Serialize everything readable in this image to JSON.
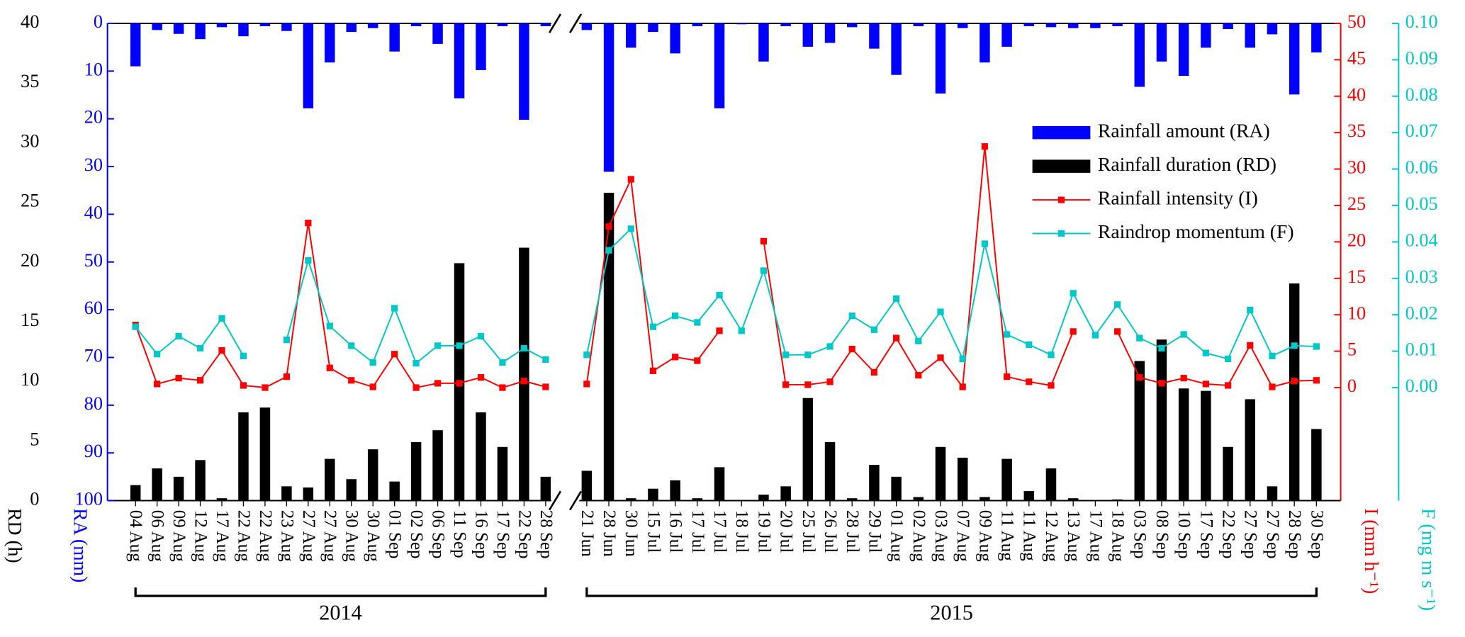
{
  "chart_data": {
    "type": "combo",
    "axis_break": true,
    "series": [
      {
        "name": "Rainfall amount (RA)",
        "color": "#0000ff",
        "mark": "bar",
        "axis": "ra"
      },
      {
        "name": "Rainfall duration (RD)",
        "color": "#000000",
        "mark": "bar",
        "axis": "rd"
      },
      {
        "name": "Rainfall intensity (I)",
        "color": "#ff0000",
        "mark": "line",
        "axis": "i"
      },
      {
        "name": "Raindrop momentum (F)",
        "color": "#00c8c8",
        "mark": "line",
        "axis": "f"
      }
    ],
    "axes": {
      "rd": {
        "label": "RD (h)",
        "color": "#000000",
        "lim": [
          0,
          40
        ],
        "ticks": [
          0,
          5,
          10,
          15,
          20,
          25,
          30,
          35,
          40
        ]
      },
      "ra": {
        "label": "RA (mm)",
        "color": "#0000ff",
        "inverted": true,
        "lim": [
          0,
          100
        ],
        "ticks": [
          0,
          10,
          20,
          30,
          40,
          50,
          60,
          70,
          80,
          90,
          100
        ]
      },
      "i": {
        "label": "I (mm h⁻¹)",
        "color": "#ff0000",
        "lim": [
          0,
          50
        ],
        "ticks": [
          0,
          5,
          10,
          15,
          20,
          25,
          30,
          35,
          40,
          45,
          50
        ]
      },
      "f": {
        "label": "F (mg m s⁻¹)",
        "color": "#00c8c8",
        "lim": [
          0,
          0.1
        ],
        "ticks": [
          {
            "value": 0,
            "label": "0.00"
          },
          0.01,
          0.02,
          0.03,
          0.04,
          0.05,
          0.06,
          0.07,
          0.08,
          0.09,
          {
            "value": 0.1,
            "label": "0.10"
          }
        ]
      }
    },
    "panels": [
      {
        "label": "2014",
        "categories": [
          "04 Aug",
          "06 Aug",
          "09 Aug",
          "12 Aug",
          "17 Aug",
          "22 Aug",
          "22 Aug",
          "23 Aug",
          "27 Aug",
          "27 Aug",
          "30 Aug",
          "30 Aug",
          "01 Sep",
          "02 Sep",
          "06 Sep",
          "11 Sep",
          "16 Sep",
          "17 Sep",
          "22 Sep",
          "28 Sep"
        ],
        "series": [
          {
            "values": [
              9.0,
              1.4,
              2.2,
              3.3,
              0.8,
              2.7,
              0.6,
              1.6,
              17.8,
              8.2,
              1.8,
              1.0,
              5.9,
              0.6,
              4.3,
              15.7,
              9.8,
              0.6,
              20.2,
              0.6
            ]
          },
          {
            "values": [
              1.3,
              2.7,
              2.0,
              3.4,
              0.2,
              7.4,
              7.8,
              1.2,
              1.1,
              3.5,
              1.8,
              4.3,
              1.6,
              4.9,
              5.9,
              19.9,
              7.4,
              4.5,
              21.2,
              2.0
            ]
          },
          {
            "values": [
              8.6,
              0.5,
              1.3,
              1.0,
              5.1,
              0.3,
              0.0,
              1.5,
              22.6,
              2.7,
              1.0,
              0.1,
              4.6,
              0.0,
              0.6,
              0.6,
              1.4,
              0.0,
              0.9,
              0.1
            ]
          },
          {
            "values": [
              0.0167,
              0.0092,
              0.0141,
              0.0108,
              0.019,
              0.0087,
              null,
              0.0131,
              0.0349,
              0.0169,
              0.0115,
              0.0069,
              0.0218,
              0.0067,
              0.0115,
              0.0115,
              0.0141,
              0.0069,
              0.0108,
              0.0077
            ]
          }
        ]
      },
      {
        "label": "2015",
        "categories": [
          "21 Jun",
          "28 Jun",
          "30 Jun",
          "15 Jul",
          "16 Jul",
          "17 Jul",
          "17 Jul",
          "18 Jul",
          "19 Jul",
          "20 Jul",
          "25 Jul",
          "26 Jul",
          "28 Jul",
          "29 Jul",
          "01 Aug",
          "02 Aug",
          "03 Aug",
          "07 Aug",
          "09 Aug",
          "11 Aug",
          "11 Aug",
          "12 Aug",
          "13 Aug",
          "17 Aug",
          "18 Aug",
          "03 Sep",
          "08 Sep",
          "10 Sep",
          "17 Sep",
          "22 Sep",
          "27 Sep",
          "27 Sep",
          "28 Sep",
          "30 Sep"
        ],
        "series": [
          {
            "values": [
              1.4,
              31.1,
              5.1,
              1.8,
              6.3,
              0.6,
              17.8,
              0.2,
              8.0,
              0.6,
              4.9,
              4.1,
              0.8,
              5.3,
              10.8,
              0.6,
              14.7,
              1.0,
              8.2,
              4.9,
              0.6,
              0.8,
              1.0,
              1.0,
              0.6,
              13.3,
              8.0,
              11.0,
              5.1,
              1.2,
              5.1,
              2.3,
              14.9,
              6.1
            ]
          },
          {
            "values": [
              2.5,
              25.8,
              0.2,
              1.0,
              1.7,
              0.2,
              2.8,
              0,
              0.5,
              1.2,
              8.6,
              4.9,
              0.2,
              3.0,
              2.0,
              0.3,
              4.5,
              3.6,
              0.3,
              3.5,
              0.8,
              2.7,
              0.2,
              0,
              0.1,
              11.7,
              13.5,
              9.4,
              9.2,
              4.5,
              8.5,
              1.2,
              18.2,
              6.0
            ]
          },
          {
            "values": [
              0.5,
              22.1,
              28.6,
              2.3,
              4.2,
              3.7,
              7.8,
              null,
              20.1,
              0.4,
              0.4,
              0.8,
              5.3,
              2.1,
              6.8,
              1.7,
              4.1,
              0.1,
              33.1,
              1.5,
              0.8,
              0.3,
              7.7,
              null,
              7.7,
              1.4,
              0.6,
              1.3,
              0.5,
              0.3,
              5.8,
              0.1,
              0.9,
              1.0
            ]
          },
          {
            "values": [
              0.009,
              0.0377,
              0.0436,
              0.0167,
              0.0197,
              0.0179,
              0.0254,
              0.0156,
              0.0321,
              0.009,
              0.009,
              0.0113,
              0.0197,
              0.0159,
              0.0244,
              0.0128,
              0.0208,
              0.0079,
              0.0395,
              0.0146,
              0.0118,
              0.009,
              0.0259,
              0.0144,
              0.0228,
              0.0136,
              0.0108,
              0.0146,
              0.0095,
              0.0079,
              0.0213,
              0.0087,
              0.0115,
              0.0113
            ]
          }
        ]
      }
    ]
  }
}
